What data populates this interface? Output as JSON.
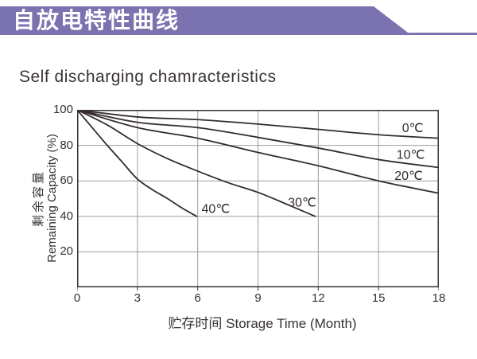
{
  "banner": {
    "title": "自放电特性曲线",
    "color": "#7B72B0"
  },
  "page_title": "Self discharging chamracteristics",
  "chart_data": {
    "type": "line",
    "title": "Self discharging chamracteristics",
    "xlabel": "贮存时间 Storage Time (Month)",
    "ylabel_cn": "剩余容量",
    "ylabel_en": "Remaining Capacity (%)",
    "xlim": [
      0,
      18
    ],
    "ylim": [
      0,
      100
    ],
    "x_ticks": [
      0,
      3,
      6,
      9,
      12,
      15,
      18
    ],
    "y_ticks": [
      20,
      40,
      60,
      80,
      100
    ],
    "grid": true,
    "legend_position": "inline-labels",
    "series": [
      {
        "name": "0℃",
        "points": [
          [
            0,
            100
          ],
          [
            3,
            96
          ],
          [
            6,
            94.5
          ],
          [
            9,
            92
          ],
          [
            12,
            89
          ],
          [
            15,
            86
          ],
          [
            18,
            84
          ]
        ]
      },
      {
        "name": "10℃",
        "points": [
          [
            0,
            100
          ],
          [
            3,
            93
          ],
          [
            6,
            90
          ],
          [
            9,
            84.5
          ],
          [
            12,
            78.5
          ],
          [
            15,
            72
          ],
          [
            18,
            67.5
          ]
        ]
      },
      {
        "name": "20℃",
        "points": [
          [
            0,
            100
          ],
          [
            3,
            90
          ],
          [
            6,
            84
          ],
          [
            9,
            76
          ],
          [
            12,
            68.5
          ],
          [
            15,
            60
          ],
          [
            18,
            53
          ]
        ]
      },
      {
        "name": "30℃",
        "points": [
          [
            0,
            100
          ],
          [
            1.5,
            91.5
          ],
          [
            3,
            81
          ],
          [
            4.5,
            72.5
          ],
          [
            6,
            65.5
          ],
          [
            7.5,
            59
          ],
          [
            9,
            53.5
          ],
          [
            10.5,
            46.5
          ],
          [
            11.85,
            40
          ]
        ]
      },
      {
        "name": "40℃",
        "points": [
          [
            0,
            100
          ],
          [
            0.75,
            90
          ],
          [
            1.5,
            80
          ],
          [
            2.25,
            70.5
          ],
          [
            3,
            61
          ],
          [
            3.75,
            55
          ],
          [
            4.5,
            50
          ],
          [
            5.25,
            44.5
          ],
          [
            5.95,
            40
          ]
        ]
      }
    ],
    "annotations": [
      {
        "label": "0℃",
        "x": 16.7,
        "y": 90
      },
      {
        "label": "10℃",
        "x": 16.6,
        "y": 75
      },
      {
        "label": "20℃",
        "x": 16.5,
        "y": 63
      },
      {
        "label": "30℃",
        "x": 11.2,
        "y": 48
      },
      {
        "label": "40℃",
        "x": 6.9,
        "y": 44.5
      }
    ],
    "colors": {
      "line": "#352C2C",
      "grid": "#9D9D9D",
      "axis": "#3A3132",
      "text": "#383131"
    }
  }
}
